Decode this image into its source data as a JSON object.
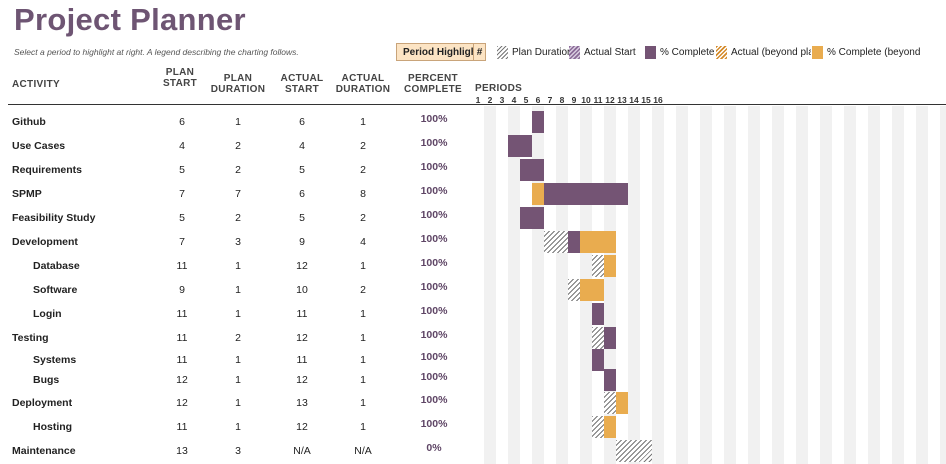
{
  "header": {
    "title": "Project Planner",
    "subtitle": "Select a period to highlight at right.  A legend describing the charting follows.",
    "period_highlight_label": "Period Highlight",
    "period_highlight_value": "#"
  },
  "legend": {
    "plan_duration": "Plan Duration",
    "actual_start": "Actual Start",
    "percent_complete": "% Complete",
    "actual_beyond_plan": "Actual (beyond plan)",
    "percent_complete_beyond": "% Complete (beyond plan)"
  },
  "columns": {
    "activity": "ACTIVITY",
    "plan_start": "PLAN START",
    "plan_duration": "PLAN DURATION",
    "actual_start": "ACTUAL START",
    "actual_duration": "ACTUAL DURATION",
    "percent_complete": "PERCENT COMPLETE",
    "periods": "PERIODS"
  },
  "periods": [
    "1",
    "2",
    "3",
    "4",
    "5",
    "6",
    "7",
    "8",
    "9",
    "10",
    "11",
    "12",
    "13",
    "14",
    "15",
    "16"
  ],
  "colors": {
    "title": "#6e5573",
    "complete": "#745474",
    "beyond_complete": "#e9ac4f",
    "chart_column": "#f1f1f1"
  },
  "activities": [
    {
      "name": "Github",
      "indent": false,
      "plan_start": "6",
      "plan_duration": "1",
      "actual_start": "6",
      "actual_duration": "1",
      "percent": "100%"
    },
    {
      "name": "Use Cases",
      "indent": false,
      "plan_start": "4",
      "plan_duration": "2",
      "actual_start": "4",
      "actual_duration": "2",
      "percent": "100%"
    },
    {
      "name": "Requirements",
      "indent": false,
      "plan_start": "5",
      "plan_duration": "2",
      "actual_start": "5",
      "actual_duration": "2",
      "percent": "100%"
    },
    {
      "name": "SPMP",
      "indent": false,
      "plan_start": "7",
      "plan_duration": "7",
      "actual_start": "6",
      "actual_duration": "8",
      "percent": "100%"
    },
    {
      "name": "Feasibility Study",
      "indent": false,
      "plan_start": "5",
      "plan_duration": "2",
      "actual_start": "5",
      "actual_duration": "2",
      "percent": "100%"
    },
    {
      "name": "Development",
      "indent": false,
      "plan_start": "7",
      "plan_duration": "3",
      "actual_start": "9",
      "actual_duration": "4",
      "percent": "100%"
    },
    {
      "name": "Database",
      "indent": true,
      "plan_start": "11",
      "plan_duration": "1",
      "actual_start": "12",
      "actual_duration": "1",
      "percent": "100%"
    },
    {
      "name": "Software",
      "indent": true,
      "plan_start": "9",
      "plan_duration": "1",
      "actual_start": "10",
      "actual_duration": "2",
      "percent": "100%"
    },
    {
      "name": "Login",
      "indent": true,
      "plan_start": "11",
      "plan_duration": "1",
      "actual_start": "11",
      "actual_duration": "1",
      "percent": "100%"
    },
    {
      "name": "Testing",
      "indent": false,
      "plan_start": "11",
      "plan_duration": "2",
      "actual_start": "12",
      "actual_duration": "1",
      "percent": "100%"
    },
    {
      "name": "Systems",
      "indent": true,
      "plan_start": "11",
      "plan_duration": "1",
      "actual_start": "11",
      "actual_duration": "1",
      "percent": "100%"
    },
    {
      "name": "Bugs",
      "indent": true,
      "plan_start": "12",
      "plan_duration": "1",
      "actual_start": "12",
      "actual_duration": "1",
      "percent": "100%"
    },
    {
      "name": "Deployment",
      "indent": false,
      "plan_start": "12",
      "plan_duration": "1",
      "actual_start": "13",
      "actual_duration": "1",
      "percent": "100%"
    },
    {
      "name": "Hosting",
      "indent": true,
      "plan_start": "11",
      "plan_duration": "1",
      "actual_start": "12",
      "actual_duration": "1",
      "percent": "100%"
    },
    {
      "name": "Maintenance",
      "indent": false,
      "plan_start": "13",
      "plan_duration": "3",
      "actual_start": "N/A",
      "actual_duration": "N/A",
      "percent": "0%"
    }
  ]
}
